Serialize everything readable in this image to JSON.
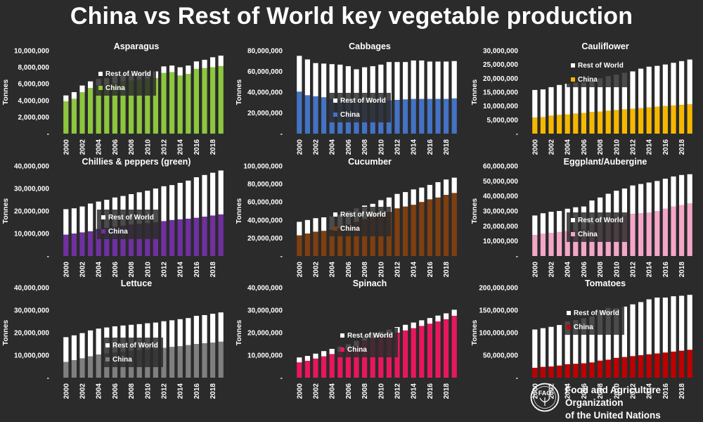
{
  "title": "China vs Rest of World key vegetable production",
  "organization": {
    "line1": "Food and Agriculture Organization",
    "line2": "of the United Nations",
    "logo_letters": "FAO"
  },
  "colors": {
    "background": "#2b2b2b",
    "rest_of_world": "#ffffff",
    "text": "#ffffff"
  },
  "chart_data": [
    {
      "type": "bar",
      "stacked": true,
      "title": "Asparagus",
      "ylabel": "Tonnes",
      "years": [
        2000,
        2001,
        2002,
        2003,
        2004,
        2005,
        2006,
        2007,
        2008,
        2009,
        2010,
        2011,
        2012,
        2013,
        2014,
        2015,
        2016,
        2017,
        2018,
        2019
      ],
      "xtick_labels": [
        "2000",
        "2002",
        "2004",
        "2006",
        "2008",
        "2010",
        "2012",
        "2014",
        "2016",
        "2018"
      ],
      "ylim": [
        0,
        10000000
      ],
      "ytick_labels": [
        "-",
        "2,000,000",
        "4,000,000",
        "6,000,000",
        "8,000,000",
        "10,000,000"
      ],
      "legend": [
        "Rest of World",
        "China"
      ],
      "legend_position": "right",
      "series": [
        {
          "name": "China",
          "color": "#8dc63f",
          "values": [
            3900000,
            4200000,
            5000000,
            5500000,
            5800000,
            5900000,
            6100000,
            6300000,
            6400000,
            6500000,
            6600000,
            6700000,
            7300000,
            7400000,
            7000000,
            7200000,
            7800000,
            7900000,
            8000000,
            8150000
          ]
        },
        {
          "name": "Rest of World",
          "color": "#ffffff",
          "values": [
            700000,
            800000,
            800000,
            800000,
            800000,
            800000,
            800000,
            800000,
            800000,
            800000,
            800000,
            800000,
            800000,
            800000,
            1000000,
            1000000,
            900000,
            1000000,
            1200000,
            1250000
          ]
        }
      ]
    },
    {
      "type": "bar",
      "stacked": true,
      "title": "Cabbages",
      "ylabel": "Tonnes",
      "years": [
        2000,
        2001,
        2002,
        2003,
        2004,
        2005,
        2006,
        2007,
        2008,
        2009,
        2010,
        2011,
        2012,
        2013,
        2014,
        2015,
        2016,
        2017,
        2018,
        2019
      ],
      "xtick_labels": [
        "2000",
        "2002",
        "2004",
        "2006",
        "2008",
        "2010",
        "2012",
        "2014",
        "2016",
        "2018"
      ],
      "ylim": [
        0,
        80000000
      ],
      "ytick_labels": [
        "-",
        "20,000,000",
        "40,000,000",
        "60,000,000",
        "80,000,000"
      ],
      "legend": [
        "Rest of World",
        "China"
      ],
      "legend_position": "right",
      "series": [
        {
          "name": "China",
          "color": "#4472c4",
          "values": [
            40500000,
            37000000,
            36000000,
            35000000,
            33500000,
            32500000,
            31500000,
            30500000,
            30000000,
            30000000,
            31000000,
            32000000,
            32500000,
            33000000,
            33500000,
            33500000,
            33500000,
            33500000,
            33500000,
            34000000
          ]
        },
        {
          "name": "Rest of World",
          "color": "#ffffff",
          "values": [
            34500000,
            34500000,
            32000000,
            32500000,
            33500000,
            34000000,
            33500000,
            31500000,
            34000000,
            35000000,
            35500000,
            37000000,
            36500000,
            36000000,
            37000000,
            37000000,
            36000000,
            36000000,
            36000000,
            36000000
          ]
        }
      ]
    },
    {
      "type": "bar",
      "stacked": true,
      "title": "Cauliflower",
      "ylabel": "Tonnes",
      "years": [
        2000,
        2001,
        2002,
        2003,
        2004,
        2005,
        2006,
        2007,
        2008,
        2009,
        2010,
        2011,
        2012,
        2013,
        2014,
        2015,
        2016,
        2017,
        2018,
        2019
      ],
      "xtick_labels": [
        "2000",
        "2002",
        "2004",
        "2006",
        "2008",
        "2010",
        "2012",
        "2014",
        "2016",
        "2018"
      ],
      "ylim": [
        0,
        30000000
      ],
      "ytick_labels": [
        "-",
        "5,000,000",
        "10,000,000",
        "15,000,000",
        "20,000,000",
        "25,000,000",
        "30,000,000"
      ],
      "legend": [
        "Rest of World",
        "China"
      ],
      "legend_position": "right",
      "series": [
        {
          "name": "China",
          "color": "#f5b800",
          "values": [
            5800000,
            6000000,
            6500000,
            6800000,
            7000000,
            7200000,
            7500000,
            7800000,
            8000000,
            8300000,
            8500000,
            8800000,
            9000000,
            9200000,
            9500000,
            9700000,
            10000000,
            10200000,
            10400000,
            10600000
          ]
        },
        {
          "name": "Rest of World",
          "color": "#ffffff",
          "values": [
            10000000,
            10000000,
            10300000,
            10800000,
            11000000,
            11300000,
            11000000,
            11400000,
            12000000,
            12500000,
            12800000,
            13200000,
            13500000,
            14300000,
            14700000,
            14800000,
            15000000,
            15400000,
            15800000,
            16200000
          ]
        }
      ]
    },
    {
      "type": "bar",
      "stacked": true,
      "title": "Chillies & peppers (green)",
      "ylabel": "Tonnes",
      "years": [
        2000,
        2001,
        2002,
        2003,
        2004,
        2005,
        2006,
        2007,
        2008,
        2009,
        2010,
        2011,
        2012,
        2013,
        2014,
        2015,
        2016,
        2017,
        2018,
        2019
      ],
      "xtick_labels": [
        "2000",
        "2002",
        "2004",
        "2006",
        "2008",
        "2010",
        "2012",
        "2014",
        "2016",
        "2018"
      ],
      "ylim": [
        0,
        40000000
      ],
      "ytick_labels": [
        "-",
        "10,000,000",
        "20,000,000",
        "30,000,000",
        "40,000,000"
      ],
      "legend": [
        "Rest of World",
        "China"
      ],
      "legend_position": "right",
      "series": [
        {
          "name": "China",
          "color": "#7030a0",
          "values": [
            9500000,
            10000000,
            10500000,
            11000000,
            12000000,
            12500000,
            13000000,
            13500000,
            14000000,
            14300000,
            14600000,
            15000000,
            15500000,
            16000000,
            16300000,
            16600000,
            17000000,
            17500000,
            18000000,
            18500000
          ]
        },
        {
          "name": "Rest of World",
          "color": "#ffffff",
          "values": [
            11300000,
            11200000,
            11500000,
            12300000,
            12200000,
            12500000,
            13000000,
            13200000,
            13500000,
            14000000,
            14400000,
            15000000,
            15500000,
            15500000,
            16200000,
            16900000,
            18000000,
            18500000,
            19000000,
            19500000
          ]
        }
      ]
    },
    {
      "type": "bar",
      "stacked": true,
      "title": "Cucumber",
      "ylabel": "Tonnes",
      "years": [
        2000,
        2001,
        2002,
        2003,
        2004,
        2005,
        2006,
        2007,
        2008,
        2009,
        2010,
        2011,
        2012,
        2013,
        2014,
        2015,
        2016,
        2017,
        2018,
        2019
      ],
      "xtick_labels": [
        "2000",
        "2002",
        "2004",
        "2006",
        "2008",
        "2010",
        "2012",
        "2014",
        "2016",
        "2018"
      ],
      "ylim": [
        0,
        100000000
      ],
      "ytick_labels": [
        "-",
        "20,000,000",
        "40,000,000",
        "60,000,000",
        "80,000,000",
        "100,000,000"
      ],
      "legend": [
        "Rest of World",
        "China"
      ],
      "legend_position": "right",
      "series": [
        {
          "name": "China",
          "color": "#7f3f10",
          "values": [
            23000000,
            25000000,
            27000000,
            28000000,
            29000000,
            31000000,
            35000000,
            38000000,
            41000000,
            43000000,
            46000000,
            49000000,
            53000000,
            55000000,
            57000000,
            60000000,
            63000000,
            65000000,
            68000000,
            70000000
          ]
        },
        {
          "name": "Rest of World",
          "color": "#ffffff",
          "values": [
            15000000,
            15000000,
            15000000,
            15000000,
            15000000,
            15000000,
            15000000,
            15000000,
            15000000,
            15000000,
            16000000,
            16000000,
            16000000,
            16000000,
            17000000,
            16000000,
            16000000,
            17000000,
            17000000,
            17000000
          ]
        }
      ]
    },
    {
      "type": "bar",
      "stacked": true,
      "title": "Eggplant/Aubergine",
      "ylabel": "Tonnes",
      "years": [
        2000,
        2001,
        2002,
        2003,
        2004,
        2005,
        2006,
        2007,
        2008,
        2009,
        2010,
        2011,
        2012,
        2013,
        2014,
        2015,
        2016,
        2017,
        2018,
        2019
      ],
      "xtick_labels": [
        "2000",
        "2002",
        "2004",
        "2006",
        "2008",
        "2010",
        "2012",
        "2014",
        "2016",
        "2018"
      ],
      "ylim": [
        0,
        60000000
      ],
      "ytick_labels": [
        "-",
        "10,000,000",
        "20,000,000",
        "30,000,000",
        "40,000,000",
        "50,000,000",
        "60,000,000"
      ],
      "legend": [
        "Rest of World",
        "China"
      ],
      "legend_position": "right",
      "series": [
        {
          "name": "China",
          "color": "#f4a6c8",
          "values": [
            14000000,
            15000000,
            15500000,
            16000000,
            16500000,
            17000000,
            18000000,
            21000000,
            22000000,
            24000000,
            26000000,
            27000000,
            28000000,
            28500000,
            29000000,
            30000000,
            31500000,
            33000000,
            34000000,
            35000000
          ]
        },
        {
          "name": "Rest of World",
          "color": "#ffffff",
          "values": [
            13000000,
            13500000,
            14000000,
            14000000,
            15000000,
            15500000,
            15000000,
            16000000,
            17000000,
            17500000,
            17500000,
            18000000,
            19000000,
            19500000,
            20000000,
            20000000,
            20000000,
            20000000,
            20000000,
            19500000
          ]
        }
      ]
    },
    {
      "type": "bar",
      "stacked": true,
      "title": "Lettuce",
      "ylabel": "Tonnes",
      "years": [
        2000,
        2001,
        2002,
        2003,
        2004,
        2005,
        2006,
        2007,
        2008,
        2009,
        2010,
        2011,
        2012,
        2013,
        2014,
        2015,
        2016,
        2017,
        2018,
        2019
      ],
      "xtick_labels": [
        "2000",
        "2002",
        "2004",
        "2006",
        "2008",
        "2010",
        "2012",
        "2014",
        "2016",
        "2018"
      ],
      "ylim": [
        0,
        40000000
      ],
      "ytick_labels": [
        "-",
        "10,000,000",
        "20,000,000",
        "30,000,000",
        "40,000,000"
      ],
      "legend": [
        "Rest of World",
        "China"
      ],
      "legend_position": "right",
      "series": [
        {
          "name": "China",
          "color": "#7f7f7f",
          "values": [
            7000000,
            7800000,
            8600000,
            9500000,
            10300000,
            10800000,
            11200000,
            11600000,
            12000000,
            12300000,
            12600000,
            12900000,
            13300000,
            13700000,
            14000000,
            14500000,
            15000000,
            15300000,
            15600000,
            16000000
          ]
        },
        {
          "name": "Rest of World",
          "color": "#ffffff",
          "values": [
            11000000,
            11000000,
            11200000,
            11500000,
            11500000,
            11500000,
            11600000,
            11600000,
            11500000,
            11500000,
            11600000,
            11600000,
            11800000,
            11800000,
            12000000,
            12000000,
            12500000,
            12500000,
            12800000,
            13000000
          ]
        }
      ]
    },
    {
      "type": "bar",
      "stacked": true,
      "title": "Spinach",
      "ylabel": "Tonnes",
      "years": [
        2000,
        2001,
        2002,
        2003,
        2004,
        2005,
        2006,
        2007,
        2008,
        2009,
        2010,
        2011,
        2012,
        2013,
        2014,
        2015,
        2016,
        2017,
        2018,
        2019
      ],
      "xtick_labels": [
        "2000",
        "2002",
        "2004",
        "2006",
        "2008",
        "2010",
        "2012",
        "2014",
        "2016",
        "2018"
      ],
      "ylim": [
        0,
        40000000
      ],
      "ytick_labels": [
        "-",
        "10,000,000",
        "20,000,000",
        "30,000,000",
        "40,000,000"
      ],
      "legend": [
        "Rest of World",
        "China"
      ],
      "legend_position": "right",
      "series": [
        {
          "name": "China",
          "color": "#e8175d",
          "values": [
            6800000,
            7500000,
            8500000,
            9500000,
            10500000,
            11500000,
            12500000,
            14000000,
            16500000,
            17500000,
            18000000,
            19000000,
            20000000,
            21000000,
            22000000,
            23000000,
            24000000,
            25000000,
            26000000,
            27500000
          ]
        },
        {
          "name": "Rest of World",
          "color": "#ffffff",
          "values": [
            2200000,
            2200000,
            2200000,
            2300000,
            2300000,
            2300000,
            2300000,
            2300000,
            2400000,
            2400000,
            2400000,
            2400000,
            2500000,
            2500000,
            2500000,
            2500000,
            2500000,
            2600000,
            2600000,
            2700000
          ]
        }
      ]
    },
    {
      "type": "bar",
      "stacked": true,
      "title": "Tomatoes",
      "ylabel": "Tonnes",
      "years": [
        2000,
        2001,
        2002,
        2003,
        2004,
        2005,
        2006,
        2007,
        2008,
        2009,
        2010,
        2011,
        2012,
        2013,
        2014,
        2015,
        2016,
        2017,
        2018,
        2019
      ],
      "xtick_labels": [
        "2000",
        "2002",
        "2004",
        "2006",
        "2008",
        "2010",
        "2012",
        "2014",
        "2016",
        "2018"
      ],
      "ylim": [
        0,
        200000000
      ],
      "ytick_labels": [
        "-",
        "50,000,000",
        "100,000,000",
        "150,000,000",
        "200,000,000"
      ],
      "legend": [
        "Rest of World",
        "China"
      ],
      "legend_position": "right",
      "series": [
        {
          "name": "China",
          "color": "#c00000",
          "values": [
            22000000,
            24000000,
            25000000,
            27000000,
            30000000,
            31000000,
            32000000,
            34000000,
            38000000,
            40000000,
            44000000,
            46000000,
            48000000,
            50000000,
            52000000,
            54000000,
            56000000,
            58000000,
            60000000,
            62000000
          ]
        },
        {
          "name": "Rest of World",
          "color": "#ffffff",
          "values": [
            85000000,
            86000000,
            88000000,
            90000000,
            95000000,
            97000000,
            100000000,
            102000000,
            110000000,
            115000000,
            110000000,
            112000000,
            115000000,
            118000000,
            122000000,
            124000000,
            122000000,
            123000000,
            122000000,
            122000000
          ]
        }
      ]
    }
  ]
}
